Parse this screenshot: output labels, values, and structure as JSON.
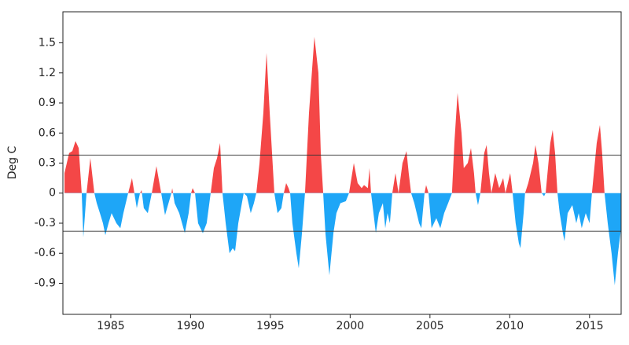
{
  "chart_data": {
    "type": "area",
    "ylabel": "Deg C",
    "x": [
      1982.1,
      1982.39,
      1982.59,
      1982.79,
      1982.99,
      1983.18,
      1983.28,
      1983.48,
      1983.72,
      1983.97,
      1984.12,
      1984.32,
      1984.51,
      1984.66,
      1984.86,
      1985.05,
      1985.35,
      1985.6,
      1985.79,
      1986.09,
      1986.33,
      1986.48,
      1986.63,
      1986.83,
      1986.93,
      1987.07,
      1987.32,
      1987.57,
      1987.86,
      1988.16,
      1988.4,
      1988.8,
      1988.85,
      1989.0,
      1989.29,
      1989.64,
      1989.88,
      1990.03,
      1990.13,
      1990.28,
      1990.47,
      1990.77,
      1991.01,
      1991.26,
      1991.46,
      1991.66,
      1991.85,
      1992.0,
      1992.2,
      1992.44,
      1992.64,
      1992.79,
      1992.99,
      1993.33,
      1993.53,
      1993.77,
      1993.97,
      1994.12,
      1994.32,
      1994.56,
      1994.76,
      1994.96,
      1995.25,
      1995.45,
      1995.69,
      1995.84,
      1995.99,
      1996.14,
      1996.24,
      1996.38,
      1996.63,
      1996.78,
      1996.98,
      1997.17,
      1997.42,
      1997.76,
      1998.01,
      1998.16,
      1998.31,
      1998.45,
      1998.7,
      1998.95,
      1999.14,
      1999.39,
      1999.73,
      1999.93,
      2000.23,
      2000.47,
      2000.72,
      2000.87,
      2001.11,
      2001.21,
      2001.31,
      2001.61,
      2001.8,
      2002.05,
      2002.2,
      2002.34,
      2002.49,
      2002.64,
      2002.84,
      2003.03,
      2003.28,
      2003.53,
      2003.67,
      2003.82,
      2004.02,
      2004.32,
      2004.46,
      2004.66,
      2004.76,
      2004.91,
      2005.1,
      2005.4,
      2005.65,
      2005.89,
      2006.14,
      2006.38,
      2006.53,
      2006.73,
      2006.98,
      2007.12,
      2007.37,
      2007.57,
      2007.76,
      2007.86,
      2008.01,
      2008.16,
      2008.4,
      2008.55,
      2008.7,
      2008.85,
      2009.09,
      2009.34,
      2009.59,
      2009.73,
      2010.03,
      2010.18,
      2010.37,
      2010.57,
      2010.67,
      2010.87,
      2010.96,
      2011.16,
      2011.46,
      2011.61,
      2011.8,
      2012.0,
      2012.15,
      2012.25,
      2012.54,
      2012.69,
      2012.84,
      2012.99,
      2013.13,
      2013.33,
      2013.43,
      2013.63,
      2013.92,
      2014.17,
      2014.32,
      2014.51,
      2014.76,
      2015.0,
      2015.15,
      2015.45,
      2015.65,
      2015.79,
      2015.94,
      2016.14,
      2016.38,
      2016.58,
      2016.78,
      2016.98
    ],
    "values": [
      0.2,
      0.4,
      0.42,
      0.52,
      0.45,
      0,
      -0.44,
      0,
      0.35,
      0,
      -0.1,
      -0.2,
      -0.3,
      -0.42,
      -0.3,
      -0.2,
      -0.3,
      -0.35,
      -0.2,
      0,
      0.15,
      0,
      -0.15,
      0,
      0.03,
      -0.15,
      -0.2,
      0,
      0.27,
      0,
      -0.22,
      0,
      0.05,
      -0.1,
      -0.2,
      -0.4,
      -0.2,
      0,
      0.05,
      0,
      -0.3,
      -0.4,
      -0.3,
      0,
      0.25,
      0.35,
      0.5,
      0,
      -0.3,
      -0.6,
      -0.55,
      -0.58,
      -0.3,
      0,
      -0.03,
      -0.2,
      -0.1,
      0,
      0.3,
      0.8,
      1.4,
      0.8,
      0,
      -0.2,
      -0.15,
      0,
      0.1,
      0.05,
      0,
      -0.3,
      -0.6,
      -0.75,
      -0.4,
      0,
      0.8,
      1.56,
      1.2,
      0.4,
      0,
      -0.4,
      -0.82,
      -0.4,
      -0.2,
      -0.1,
      -0.08,
      0,
      0.3,
      0.1,
      0.05,
      0.08,
      0.05,
      0.25,
      0,
      -0.4,
      -0.2,
      -0.1,
      -0.35,
      -0.2,
      -0.3,
      0,
      0.2,
      0,
      0.3,
      0.42,
      0.2,
      0,
      -0.1,
      -0.3,
      -0.35,
      0,
      0.08,
      0,
      -0.35,
      -0.25,
      -0.35,
      -0.2,
      -0.1,
      0,
      0.5,
      1.0,
      0.6,
      0.25,
      0.3,
      0.45,
      0.2,
      0,
      -0.12,
      0,
      0.4,
      0.48,
      0.2,
      0,
      0.2,
      0.05,
      0.15,
      0,
      0.2,
      0,
      -0.3,
      -0.5,
      -0.55,
      -0.2,
      0,
      0.1,
      0.3,
      0.48,
      0.3,
      0,
      -0.03,
      0,
      0.5,
      0.63,
      0.4,
      0,
      -0.2,
      -0.4,
      -0.48,
      -0.2,
      -0.12,
      -0.3,
      -0.2,
      -0.35,
      -0.2,
      -0.3,
      0,
      0.5,
      0.68,
      0.4,
      0,
      -0.3,
      -0.6,
      -0.92,
      -0.6,
      -0.35
    ],
    "positive_color": "#f44747",
    "negative_color": "#1ea6f7",
    "reference_lines": [
      0.38,
      -0.38
    ],
    "xlim": [
      1982,
      2016.98
    ],
    "xticks": [
      1985,
      1990,
      1995,
      2000,
      2005,
      2010,
      2015
    ],
    "ylim": [
      -1.21,
      1.81
    ],
    "yticks": [
      -0.9,
      -0.6,
      -0.3,
      0,
      0.3,
      0.6,
      0.9,
      1.2,
      1.5
    ]
  }
}
